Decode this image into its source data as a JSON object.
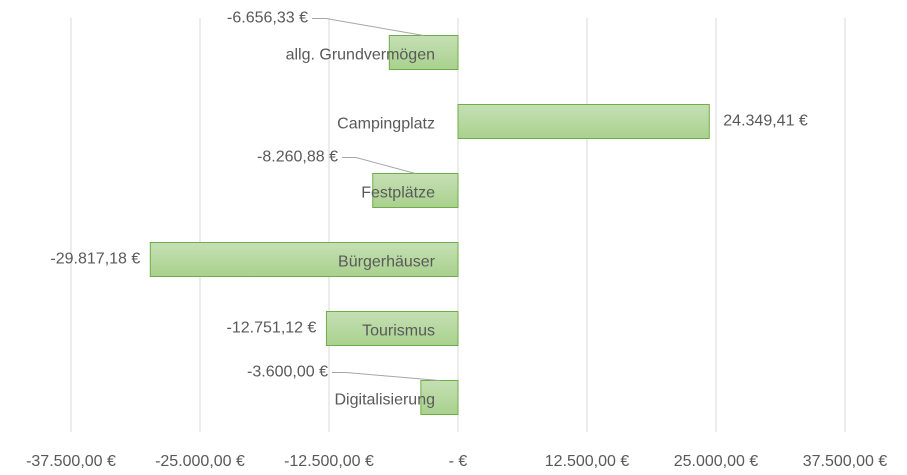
{
  "chart_data": {
    "type": "hbar",
    "categories": [
      "allg. Grundvermögen",
      "Campingplatz",
      "Festplätze",
      "Bürgerhäuser",
      "Tourismus",
      "Digitalisierung"
    ],
    "values": [
      -6656.33,
      24349.41,
      -8260.88,
      -29817.18,
      -12751.12,
      -3600
    ],
    "value_labels": [
      "-6.656,33 €",
      "24.349,41 €",
      "-8.260,88 €",
      "-29.817,18 €",
      "-12.751,12 €",
      "-3.600,00 €"
    ],
    "color": "#a9d18e",
    "edge_color": "#70ad47",
    "xlim": [
      -37500,
      37500
    ],
    "xticks": [
      {
        "value": -37500,
        "label": "-37.500,00 €"
      },
      {
        "value": -25000,
        "label": "-25.000,00 €"
      },
      {
        "value": -12500,
        "label": "-12.500,00 €"
      },
      {
        "value": 0,
        "label": "-  €"
      },
      {
        "value": 12500,
        "label": "12.500,00 €"
      },
      {
        "value": 25000,
        "label": "25.000,00 €"
      },
      {
        "value": 37500,
        "label": "37.500,00 €"
      }
    ],
    "grid": true
  }
}
